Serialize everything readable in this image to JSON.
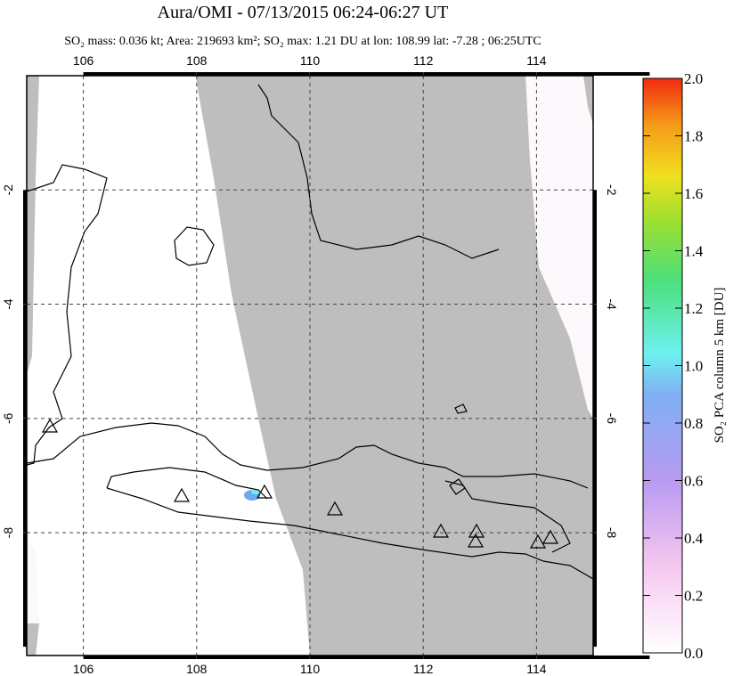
{
  "map": {
    "title": "Aura/OMI - 07/13/2015 06:24-06:27 UT",
    "subtitle": "SO₂ mass: 0.036 kt; Area: 219693 km²; SO₂ max: 1.21 DU at lon: 108.99 lat: -7.28 ; 06:25UTC",
    "xlim": [
      105,
      115
    ],
    "ylim": [
      0,
      -10.15
    ],
    "xticks": [
      106,
      108,
      110,
      112,
      114
    ],
    "yticks": [
      -2,
      -4,
      -6,
      -8
    ],
    "colorbar": {
      "label": "SO₂ PCA column 5 km [DU]",
      "lim": [
        0,
        2
      ],
      "ticks": [
        {
          "value": 0,
          "label": "0.0"
        },
        {
          "value": 0.2,
          "label": "0.2"
        },
        {
          "value": 0.4,
          "label": "0.4"
        },
        {
          "value": 0.6,
          "label": "0.6"
        },
        {
          "value": 0.8,
          "label": "0.8"
        },
        {
          "value": 1,
          "label": "1.0"
        },
        {
          "value": 1.2,
          "label": "1.2"
        },
        {
          "value": 1.4,
          "label": "1.4"
        },
        {
          "value": 1.6,
          "label": "1.6"
        },
        {
          "value": 1.8,
          "label": "1.8"
        },
        {
          "value": 2,
          "label": "2.0"
        }
      ]
    }
  }
}
